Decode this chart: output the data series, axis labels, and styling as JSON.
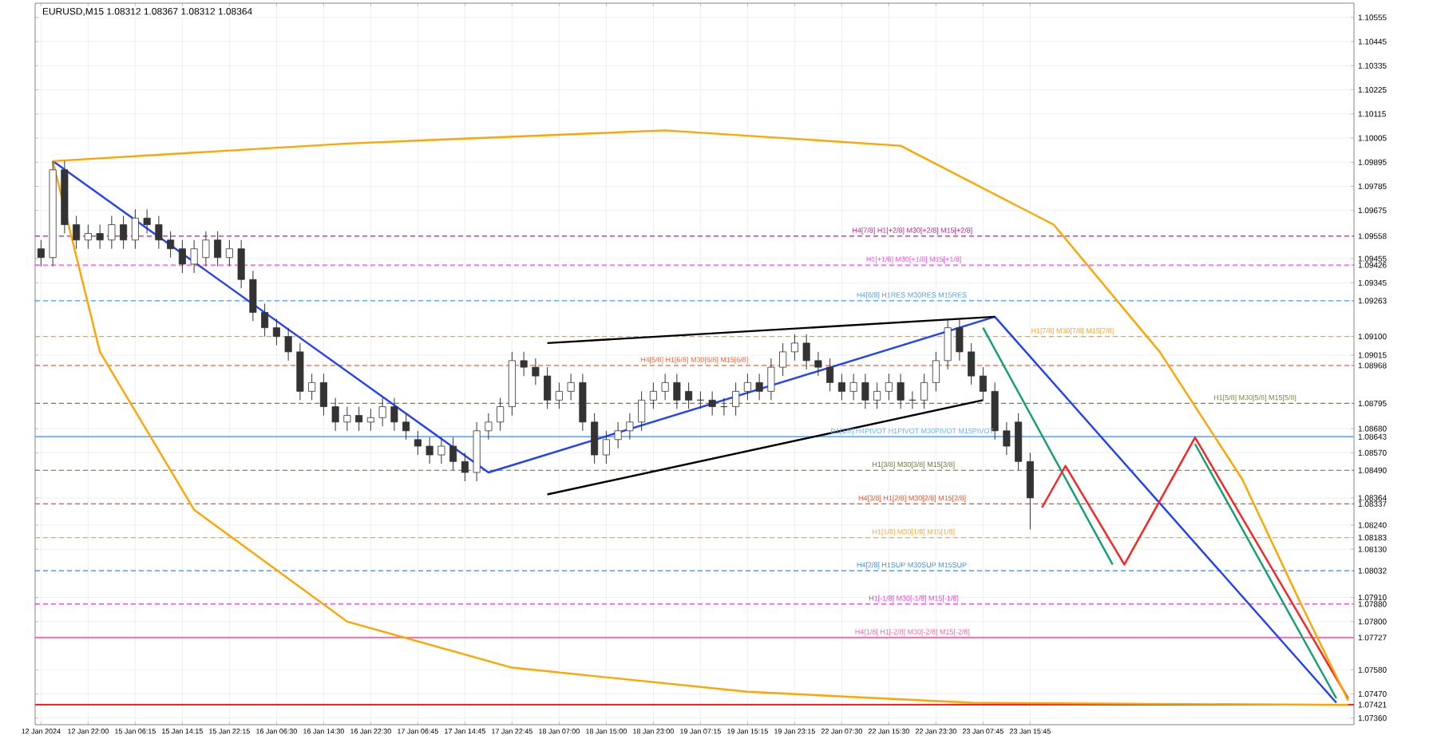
{
  "chart_data": {
    "type": "candlestick",
    "title": "EURUSD,M15  1.08312 1.08367 1.08312 1.08364",
    "categories": [
      "12 Jan 2024",
      null,
      null,
      null,
      "12 Jan 22:00",
      null,
      null,
      null,
      "15 Jan 06:15",
      null,
      null,
      null,
      "15 Jan 14:15",
      null,
      null,
      null,
      "15 Jan 22:15",
      null,
      null,
      null,
      "16 Jan 06:30",
      null,
      null,
      null,
      "16 Jan 14:30",
      null,
      null,
      null,
      "16 Jan 22:30",
      null,
      null,
      null,
      "17 Jan 06:45",
      null,
      null,
      null,
      "17 Jan 14:45",
      null,
      null,
      null,
      "17 Jan 22:45",
      null,
      null,
      null,
      "18 Jan 07:00",
      null,
      null,
      null,
      "18 Jan 15:00",
      null,
      null,
      null,
      "18 Jan 23:00",
      null,
      null,
      null,
      "19 Jan 07:15",
      null,
      null,
      null,
      "19 Jan 15:15",
      null,
      null,
      null,
      "19 Jan 23:15",
      null,
      null,
      null,
      "22 Jan 07:30",
      null,
      null,
      null,
      "22 Jan 15:30",
      null,
      null,
      null,
      "22 Jan 23:30",
      null,
      null,
      null,
      "23 Jan 07:45",
      null,
      null,
      null,
      "23 Jan 15:45",
      null,
      null,
      null,
      null,
      null,
      null,
      null,
      null,
      null,
      null,
      null,
      null,
      null,
      null,
      null,
      null,
      null,
      null,
      null,
      null,
      null,
      null,
      null,
      null,
      null,
      null,
      null
    ],
    "ohlc": [
      [
        1.095,
        1.0954,
        1.0942,
        1.0946
      ],
      [
        1.0946,
        1.099,
        1.0942,
        1.0986
      ],
      [
        1.0986,
        1.099,
        1.0957,
        1.0961
      ],
      [
        1.0961,
        1.0965,
        1.095,
        1.0954
      ],
      [
        1.0954,
        1.0961,
        1.095,
        1.0957
      ],
      [
        1.0957,
        1.0961,
        1.095,
        1.0954
      ],
      [
        1.0954,
        1.0965,
        1.095,
        1.0961
      ],
      [
        1.0961,
        1.0965,
        1.095,
        1.0954
      ],
      [
        1.0954,
        1.0968,
        1.095,
        1.0964
      ],
      [
        1.0964,
        1.0968,
        1.0957,
        1.0961
      ],
      [
        1.0961,
        1.0965,
        1.095,
        1.0954
      ],
      [
        1.0954,
        1.0958,
        1.0946,
        1.095
      ],
      [
        1.095,
        1.0954,
        1.0939,
        1.0943
      ],
      [
        1.0943,
        1.0954,
        1.0939,
        1.095
      ],
      [
        1.0946,
        1.0958,
        1.0942,
        1.0954
      ],
      [
        1.0954,
        1.0958,
        1.0942,
        1.0946
      ],
      [
        1.0946,
        1.0954,
        1.0942,
        1.095
      ],
      [
        1.095,
        1.0954,
        1.0932,
        1.0936
      ],
      [
        1.0936,
        1.094,
        1.0917,
        1.0921
      ],
      [
        1.0921,
        1.0925,
        1.091,
        1.0914
      ],
      [
        1.0914,
        1.0918,
        1.0906,
        1.091
      ],
      [
        1.091,
        1.0914,
        1.0899,
        1.0903
      ],
      [
        1.0903,
        1.0907,
        1.0881,
        1.0885
      ],
      [
        1.0885,
        1.0893,
        1.0881,
        1.0889
      ],
      [
        1.0889,
        1.0893,
        1.0874,
        1.0878
      ],
      [
        1.0878,
        1.0882,
        1.0867,
        1.0871
      ],
      [
        1.0871,
        1.0878,
        1.0867,
        1.0874
      ],
      [
        1.0874,
        1.0878,
        1.0867,
        1.0871
      ],
      [
        1.0871,
        1.0877,
        1.0867,
        1.0873
      ],
      [
        1.0873,
        1.0882,
        1.0869,
        1.0878
      ],
      [
        1.0878,
        1.0882,
        1.0867,
        1.0871
      ],
      [
        1.0871,
        1.0875,
        1.0863,
        1.0867
      ],
      [
        1.0863,
        1.0867,
        1.0856,
        1.086
      ],
      [
        1.086,
        1.0864,
        1.0852,
        1.0856
      ],
      [
        1.0856,
        1.0864,
        1.0852,
        1.086
      ],
      [
        1.086,
        1.0864,
        1.0849,
        1.0853
      ],
      [
        1.0853,
        1.0857,
        1.0844,
        1.0848
      ],
      [
        1.0848,
        1.0871,
        1.0844,
        1.0867
      ],
      [
        1.0867,
        1.0875,
        1.0863,
        1.0871
      ],
      [
        1.0871,
        1.0882,
        1.0867,
        1.0878
      ],
      [
        1.0878,
        1.0903,
        1.0874,
        1.0899
      ],
      [
        1.0899,
        1.0903,
        1.0892,
        1.0896
      ],
      [
        1.0896,
        1.09,
        1.0888,
        1.0892
      ],
      [
        1.0892,
        1.0896,
        1.0877,
        1.0881
      ],
      [
        1.0881,
        1.0889,
        1.0877,
        1.0885
      ],
      [
        1.0885,
        1.0893,
        1.0881,
        1.0889
      ],
      [
        1.0889,
        1.0893,
        1.0867,
        1.0871
      ],
      [
        1.0871,
        1.0875,
        1.0852,
        1.0856
      ],
      [
        1.0856,
        1.0867,
        1.0852,
        1.0863
      ],
      [
        1.0863,
        1.0871,
        1.0859,
        1.0867
      ],
      [
        1.0867,
        1.0875,
        1.0863,
        1.0871
      ],
      [
        1.0871,
        1.0885,
        1.0867,
        1.0881
      ],
      [
        1.0881,
        1.0889,
        1.0877,
        1.0885
      ],
      [
        1.0885,
        1.0893,
        1.0881,
        1.0889
      ],
      [
        1.0889,
        1.0893,
        1.0877,
        1.0881
      ],
      [
        1.0885,
        1.0889,
        1.0877,
        1.0881
      ],
      [
        1.0881,
        1.0885,
        1.0877,
        1.0881
      ],
      [
        1.0881,
        1.0885,
        1.0874,
        1.0878
      ],
      [
        1.0878,
        1.0882,
        1.0874,
        1.0878
      ],
      [
        1.0878,
        1.0889,
        1.0874,
        1.0885
      ],
      [
        1.0885,
        1.0893,
        1.0881,
        1.0889
      ],
      [
        1.0889,
        1.0893,
        1.0881,
        1.0885
      ],
      [
        1.0885,
        1.09,
        1.0881,
        1.0896
      ],
      [
        1.0896,
        1.0907,
        1.0892,
        1.0903
      ],
      [
        1.0903,
        1.0911,
        1.0899,
        1.0907
      ],
      [
        1.0907,
        1.0911,
        1.0895,
        1.0899
      ],
      [
        1.0899,
        1.0903,
        1.0892,
        1.0896
      ],
      [
        1.0896,
        1.09,
        1.0885,
        1.0889
      ],
      [
        1.0889,
        1.0893,
        1.0881,
        1.0885
      ],
      [
        1.0885,
        1.0893,
        1.0881,
        1.0889
      ],
      [
        1.0889,
        1.0893,
        1.0877,
        1.0881
      ],
      [
        1.0881,
        1.0889,
        1.0877,
        1.0885
      ],
      [
        1.0885,
        1.0893,
        1.0881,
        1.0889
      ],
      [
        1.0889,
        1.0893,
        1.0877,
        1.0881
      ],
      [
        1.0881,
        1.0885,
        1.0877,
        1.0881
      ],
      [
        1.0881,
        1.0893,
        1.0877,
        1.0889
      ],
      [
        1.0889,
        1.0903,
        1.0885,
        1.0899
      ],
      [
        1.0899,
        1.0918,
        1.0895,
        1.0914
      ],
      [
        1.0914,
        1.0918,
        1.0899,
        1.0903
      ],
      [
        1.0903,
        1.0907,
        1.0888,
        1.0892
      ],
      [
        1.0892,
        1.0896,
        1.0881,
        1.0885
      ],
      [
        1.0885,
        1.0889,
        1.0863,
        1.0867
      ],
      [
        1.0867,
        1.0871,
        1.0856,
        1.086
      ],
      [
        1.0871,
        1.0875,
        1.0849,
        1.0853
      ],
      [
        1.0853,
        1.0857,
        1.0822,
        1.08364
      ],
      null,
      null,
      null,
      null,
      null,
      null,
      null,
      null,
      null,
      null,
      null,
      null,
      null,
      null,
      null,
      null,
      null,
      null,
      null,
      null,
      null,
      null,
      null,
      null,
      null,
      null,
      null
    ],
    "ylim": [
      1.0733,
      1.1062
    ],
    "yticks": [
      1.10555,
      1.10445,
      1.10335,
      1.10225,
      1.10115,
      1.10005,
      1.09895,
      1.09785,
      1.09675,
      1.09558,
      1.09455,
      1.09426,
      1.09345,
      1.09263,
      {
        "value": 1.091,
        "label": "1.09100"
      },
      1.09015,
      1.08968,
      1.08795,
      {
        "value": 1.0868,
        "label": "1.08680"
      },
      1.08643,
      {
        "value": 1.0857,
        "label": "1.08570"
      },
      {
        "value": 1.0849,
        "label": "1.08490"
      },
      1.08364,
      1.08337,
      {
        "value": 1.0824,
        "label": "1.08240"
      },
      1.08183,
      {
        "value": 1.0813,
        "label": "1.08130"
      },
      1.08032,
      {
        "value": 1.0791,
        "label": "1.07910"
      },
      {
        "value": 1.0788,
        "label": "1.07880"
      },
      {
        "value": 1.078,
        "label": "1.07800"
      },
      1.07727,
      {
        "value": 1.0758,
        "label": "1.07580"
      },
      {
        "value": 1.0747,
        "label": "1.07470"
      },
      1.07421,
      {
        "value": 1.0736,
        "label": "1.07360"
      }
    ],
    "grid": true,
    "series": [
      {
        "type": "line",
        "color": "#2040ff",
        "values": [
          null,
          1.099,
          null,
          null,
          null,
          null,
          null,
          null,
          null,
          null,
          null,
          null,
          null,
          null,
          null,
          null,
          null,
          null,
          null,
          null,
          null,
          null,
          null,
          null,
          null,
          null,
          null,
          null,
          null,
          null,
          null,
          null,
          null,
          null,
          null,
          null,
          null,
          null,
          1.0848,
          null,
          null,
          null,
          null,
          null,
          null,
          null,
          null,
          null,
          null,
          null,
          null,
          null,
          null,
          null,
          null,
          null,
          null,
          null,
          null,
          null,
          null,
          null,
          null,
          null,
          null,
          null,
          null,
          null,
          null,
          null,
          null,
          null,
          null,
          null,
          null,
          null,
          null,
          null,
          null,
          null,
          null,
          1.0919,
          null,
          null,
          null,
          null,
          null,
          null,
          null,
          null,
          null,
          null,
          null,
          null,
          null,
          null,
          null,
          null,
          null,
          null,
          null,
          null,
          null,
          null,
          null,
          null,
          null,
          null,
          null,
          null,
          1.0743,
          null
        ]
      },
      {
        "type": "line",
        "color": "#000000",
        "values": [
          null,
          null,
          null,
          null,
          null,
          null,
          null,
          null,
          null,
          null,
          null,
          null,
          null,
          null,
          null,
          null,
          null,
          null,
          null,
          null,
          null,
          null,
          null,
          null,
          null,
          null,
          null,
          null,
          null,
          null,
          null,
          null,
          null,
          null,
          null,
          null,
          null,
          null,
          null,
          null,
          null,
          null,
          null,
          1.0907,
          null,
          null,
          null,
          null,
          null,
          null,
          null,
          null,
          null,
          null,
          null,
          null,
          null,
          null,
          null,
          null,
          null,
          null,
          null,
          null,
          null,
          null,
          null,
          null,
          null,
          null,
          null,
          null,
          null,
          null,
          null,
          null,
          null,
          null,
          null,
          null,
          null,
          1.0919,
          null,
          null,
          null,
          null,
          null,
          null,
          null,
          null,
          null,
          null,
          null,
          null,
          null,
          null,
          null,
          null,
          null,
          null,
          null,
          null,
          null,
          null,
          null,
          null,
          null,
          null,
          null,
          null,
          null,
          null
        ]
      },
      {
        "type": "line",
        "color": "#000000",
        "values": [
          null,
          null,
          null,
          null,
          null,
          null,
          null,
          null,
          null,
          null,
          null,
          null,
          null,
          null,
          null,
          null,
          null,
          null,
          null,
          null,
          null,
          null,
          null,
          null,
          null,
          null,
          null,
          null,
          null,
          null,
          null,
          null,
          null,
          null,
          null,
          null,
          null,
          null,
          null,
          null,
          null,
          null,
          null,
          1.0838,
          null,
          null,
          null,
          null,
          null,
          null,
          null,
          null,
          null,
          null,
          null,
          null,
          null,
          null,
          null,
          null,
          null,
          null,
          null,
          null,
          null,
          null,
          null,
          null,
          null,
          null,
          null,
          null,
          null,
          null,
          null,
          null,
          null,
          null,
          null,
          null,
          1.0881,
          null,
          null,
          null,
          null,
          null,
          null,
          null,
          null,
          null,
          null,
          null,
          null,
          null,
          null,
          null,
          null,
          null,
          null,
          null,
          null,
          null,
          null,
          null,
          null,
          null,
          null,
          null,
          null,
          null,
          null,
          null
        ]
      },
      {
        "type": "line",
        "color": "#10a070",
        "values": [
          null,
          null,
          null,
          null,
          null,
          null,
          null,
          null,
          null,
          null,
          null,
          null,
          null,
          null,
          null,
          null,
          null,
          null,
          null,
          null,
          null,
          null,
          null,
          null,
          null,
          null,
          null,
          null,
          null,
          null,
          null,
          null,
          null,
          null,
          null,
          null,
          null,
          null,
          null,
          null,
          null,
          null,
          null,
          null,
          null,
          null,
          null,
          null,
          null,
          null,
          null,
          null,
          null,
          null,
          null,
          null,
          null,
          null,
          null,
          null,
          null,
          null,
          null,
          null,
          null,
          null,
          null,
          null,
          null,
          null,
          null,
          null,
          null,
          null,
          null,
          null,
          null,
          null,
          null,
          null,
          1.0914,
          null,
          null,
          null,
          null,
          null,
          null,
          null,
          null,
          null,
          null,
          1.0806,
          null,
          null,
          null,
          null,
          null,
          null,
          null,
          null,
          null,
          null,
          null,
          null,
          null,
          null,
          null,
          null,
          null,
          null,
          null,
          null
        ]
      },
      {
        "type": "line",
        "color": "#10a070",
        "values": [
          null,
          null,
          null,
          null,
          null,
          null,
          null,
          null,
          null,
          null,
          null,
          null,
          null,
          null,
          null,
          null,
          null,
          null,
          null,
          null,
          null,
          null,
          null,
          null,
          null,
          null,
          null,
          null,
          null,
          null,
          null,
          null,
          null,
          null,
          null,
          null,
          null,
          null,
          null,
          null,
          null,
          null,
          null,
          null,
          null,
          null,
          null,
          null,
          null,
          null,
          null,
          null,
          null,
          null,
          null,
          null,
          null,
          null,
          null,
          null,
          null,
          null,
          null,
          null,
          null,
          null,
          null,
          null,
          null,
          null,
          null,
          null,
          null,
          null,
          null,
          null,
          null,
          null,
          null,
          null,
          null,
          null,
          null,
          null,
          null,
          null,
          null,
          null,
          null,
          null,
          null,
          null,
          null,
          null,
          null,
          null,
          null,
          null,
          1.0861,
          null,
          null,
          null,
          null,
          null,
          null,
          null,
          null,
          null,
          null,
          null,
          1.0745,
          null
        ]
      },
      {
        "type": "line",
        "color": "#ff2020",
        "values": [
          null,
          null,
          null,
          null,
          null,
          null,
          null,
          null,
          null,
          null,
          null,
          null,
          null,
          null,
          null,
          null,
          null,
          null,
          null,
          null,
          null,
          null,
          null,
          null,
          null,
          null,
          null,
          null,
          null,
          null,
          null,
          null,
          null,
          null,
          null,
          null,
          null,
          null,
          null,
          null,
          null,
          null,
          null,
          null,
          null,
          null,
          null,
          null,
          null,
          null,
          null,
          null,
          null,
          null,
          null,
          null,
          null,
          null,
          null,
          null,
          null,
          null,
          null,
          null,
          null,
          null,
          null,
          null,
          null,
          null,
          null,
          null,
          null,
          null,
          null,
          null,
          null,
          null,
          null,
          null,
          null,
          null,
          null,
          null,
          null,
          1.0832,
          null,
          1.0851,
          null,
          null,
          null,
          null,
          1.0806,
          null,
          null,
          null,
          null,
          null,
          1.0864,
          null,
          null,
          null,
          null,
          null,
          null,
          null,
          null,
          null,
          null,
          null,
          null,
          1.0745
        ]
      },
      {
        "type": "line",
        "color": "#ffa500",
        "values": [
          null,
          1.099,
          null,
          null,
          null,
          null,
          null,
          null,
          null,
          null,
          null,
          null,
          null,
          null,
          null,
          null,
          null,
          null,
          null,
          null,
          null,
          null,
          null,
          null,
          null,
          null,
          1.0998,
          null,
          null,
          null,
          null,
          null,
          null,
          null,
          null,
          null,
          null,
          null,
          null,
          null,
          null,
          null,
          null,
          null,
          null,
          null,
          null,
          null,
          null,
          null,
          null,
          null,
          null,
          1.1004,
          null,
          null,
          null,
          null,
          null,
          null,
          null,
          null,
          null,
          null,
          null,
          null,
          null,
          null,
          null,
          null,
          null,
          null,
          null,
          1.0997,
          null,
          null,
          null,
          null,
          null,
          null,
          null,
          null,
          null,
          null,
          null,
          null,
          1.0961,
          null,
          null,
          null,
          null,
          null,
          null,
          null,
          null,
          1.0903,
          null,
          null,
          null,
          null,
          null,
          null,
          1.0845,
          null,
          null,
          null,
          null,
          1.0788,
          null,
          null,
          null,
          1.0744
        ]
      },
      {
        "type": "line",
        "color": "#ffa500",
        "values": [
          null,
          1.099,
          null,
          null,
          null,
          1.0903,
          null,
          null,
          null,
          null,
          null,
          null,
          null,
          1.0831,
          null,
          null,
          null,
          null,
          null,
          null,
          null,
          null,
          null,
          null,
          null,
          null,
          1.078,
          null,
          null,
          null,
          null,
          null,
          null,
          null,
          null,
          null,
          null,
          null,
          null,
          null,
          1.0759,
          null,
          null,
          null,
          null,
          null,
          null,
          null,
          null,
          null,
          null,
          null,
          null,
          null,
          null,
          null,
          null,
          null,
          null,
          null,
          1.0748,
          null,
          null,
          null,
          null,
          null,
          null,
          null,
          null,
          null,
          null,
          null,
          null,
          null,
          null,
          null,
          null,
          null,
          null,
          1.0743,
          null,
          null,
          null,
          null,
          null,
          null,
          null,
          null,
          null,
          null,
          null,
          null,
          null,
          null,
          null,
          null,
          null,
          null,
          null,
          null,
          null,
          null,
          null,
          null,
          null,
          null,
          null,
          null,
          null,
          null,
          null,
          1.0742
        ]
      }
    ],
    "ref_lines": [
      {
        "axis": "y",
        "value": 1.09558,
        "label": "H4[7/8] H1[+2/8] M30[+2/8] M15[+2/8]",
        "color": "#c0208a",
        "line_style": "dashed"
      },
      {
        "axis": "y",
        "value": 1.09426,
        "label": "H1[+1/8] M30[+1/8] M15[+1/8]",
        "color": "#ff40ff",
        "line_style": "dashed"
      },
      {
        "axis": "y",
        "value": 1.09263,
        "label": "H4[6/8] H1RES M30RES M15RES",
        "color": "#40a0ff",
        "line_style": "dashed"
      },
      {
        "axis": "y",
        "value": 1.091,
        "label": "H1[7/8] M30[7/8] M15[7/8]",
        "color": "#ffa020",
        "line_style": "dashed"
      },
      {
        "axis": "y",
        "value": 1.08968,
        "label": "H4[5/8] H1[6/8] M30[6/8] M15[6/8]",
        "color": "#ff6030",
        "line_style": "dashed"
      },
      {
        "axis": "y",
        "value": 1.08795,
        "label": "H1[5/8] M30[5/8] M15[5/8]",
        "color": "#808040",
        "line_style": "dashed"
      },
      {
        "axis": "y",
        "value": 1.08643,
        "label": "D1[1/8] H4PIVOT H1PIVOT M30PIVOT M15PIVOT",
        "color": "#60b0ff",
        "line_style": "solid"
      },
      {
        "axis": "y",
        "value": 1.0849,
        "label": "H1[3/8] M30[3/8] M15[3/8]",
        "color": "#707038",
        "line_style": "dashed"
      },
      {
        "axis": "y",
        "value": 1.08337,
        "label": "H4[3/8] H1[2/8] M30[2/8] M15[2/8]",
        "color": "#f05020",
        "line_style": "dashed"
      },
      {
        "axis": "y",
        "value": 1.08183,
        "label": "H1[1/8] M30[1/8] M15[1/8]",
        "color": "#f8a830",
        "line_style": "dashed"
      },
      {
        "axis": "y",
        "value": 1.08032,
        "label": "H4[2/8] H1SUP M30SUP M15SUP",
        "color": "#3090f0",
        "line_style": "dashed"
      },
      {
        "axis": "y",
        "value": 1.0788,
        "label": "H1[-1/8] M30[-1/8] M15[-1/8]",
        "color": "#f030f0",
        "line_style": "dashed"
      },
      {
        "axis": "y",
        "value": 1.07727,
        "label": "H4[1/8] H1[-2/8] M30[-2/8] M15[-2/8]",
        "color": "#ff60a0",
        "line_style": "solid"
      },
      {
        "axis": "y",
        "value": 1.07421,
        "color": "#ff2020",
        "line_style": "solid"
      }
    ]
  }
}
